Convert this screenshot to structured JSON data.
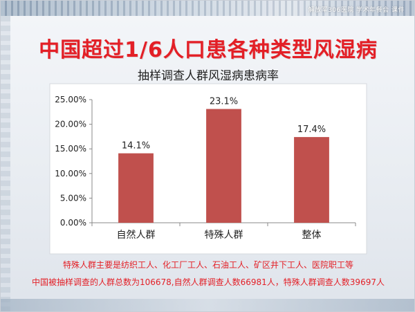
{
  "watermark": "解放军306医院  学术年餐会  课件",
  "headline": "中国超过1/6人口患各种类型风湿病",
  "chart_data": {
    "type": "bar",
    "title": "抽样调查人群风湿病患病率",
    "categories": [
      "自然人群",
      "特殊人群",
      "整体"
    ],
    "values": [
      14.1,
      23.1,
      17.4
    ],
    "data_labels": [
      "14.1%",
      "23.1%",
      "17.4%"
    ],
    "ylim": [
      0,
      25
    ],
    "yticks": [
      "0.00%",
      "5.00%",
      "10.00%",
      "15.00%",
      "20.00%",
      "25.00%"
    ],
    "grid": false,
    "bar_color": "#c0504d"
  },
  "notes": {
    "line1": "特殊人群主要是纺织工人、化工厂工人、石油工人、矿区井下工人、医院职工等",
    "line2": "中国被抽样调查的人群总数为106678,自然人群调查人数66981人，特殊人群调查人数39697人"
  },
  "colors": {
    "accent_red": "#e31f26",
    "bar": "#c0504d"
  }
}
